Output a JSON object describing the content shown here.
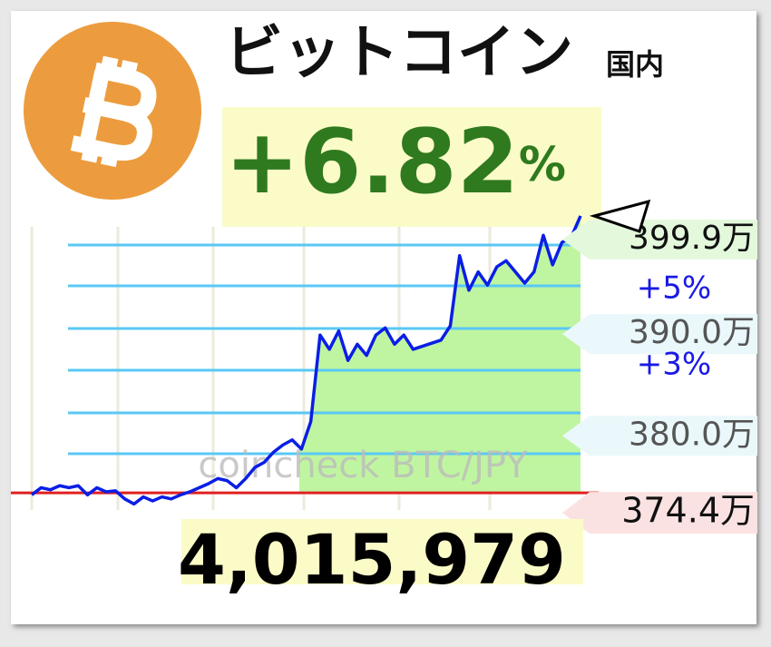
{
  "chart_data": {
    "type": "line",
    "title": "ビットコイン",
    "subtitle": "国内",
    "change": "+6.82",
    "change_unit": "%",
    "price": "4,015,979",
    "watermark": "coincheck BTC/JPY",
    "series": [
      {
        "name": "BTC/JPY",
        "color": "#0a1ee6",
        "values": [
          374.2,
          374.9,
          374.7,
          375.1,
          374.9,
          375.1,
          374.2,
          374.9,
          374.5,
          374.6,
          373.8,
          373.3,
          374.0,
          373.6,
          374.0,
          373.8,
          374.2,
          374.5,
          374.9,
          375.3,
          375.8,
          375.6,
          374.9,
          375.8,
          376.9,
          377.4,
          378.4,
          379.1,
          379.6,
          378.7,
          381.4,
          389.9,
          388.5,
          390.3,
          387.4,
          389.0,
          387.9,
          389.9,
          390.6,
          389.0,
          389.9,
          388.5,
          388.8,
          389.1,
          389.4,
          390.8,
          397.7,
          394.3,
          396.1,
          394.8,
          396.6,
          397.2,
          396.1,
          395.0,
          396.1,
          399.7,
          396.8,
          399.0,
          399.5,
          401.6
        ]
      }
    ],
    "reference": {
      "value": 374.4,
      "label": "374.4万",
      "color": "#e02020"
    },
    "price_labels": [
      {
        "value": 399.9,
        "label": "399.9万"
      },
      {
        "value": 390.0,
        "label": "390.0万"
      },
      {
        "value": 380.0,
        "label": "380.0万"
      }
    ],
    "percent_labels": [
      {
        "value": 5,
        "label": "+5%"
      },
      {
        "value": 3,
        "label": "+3%"
      }
    ],
    "ylim": [
      372,
      402
    ],
    "fill_color": "#bff5a0"
  }
}
